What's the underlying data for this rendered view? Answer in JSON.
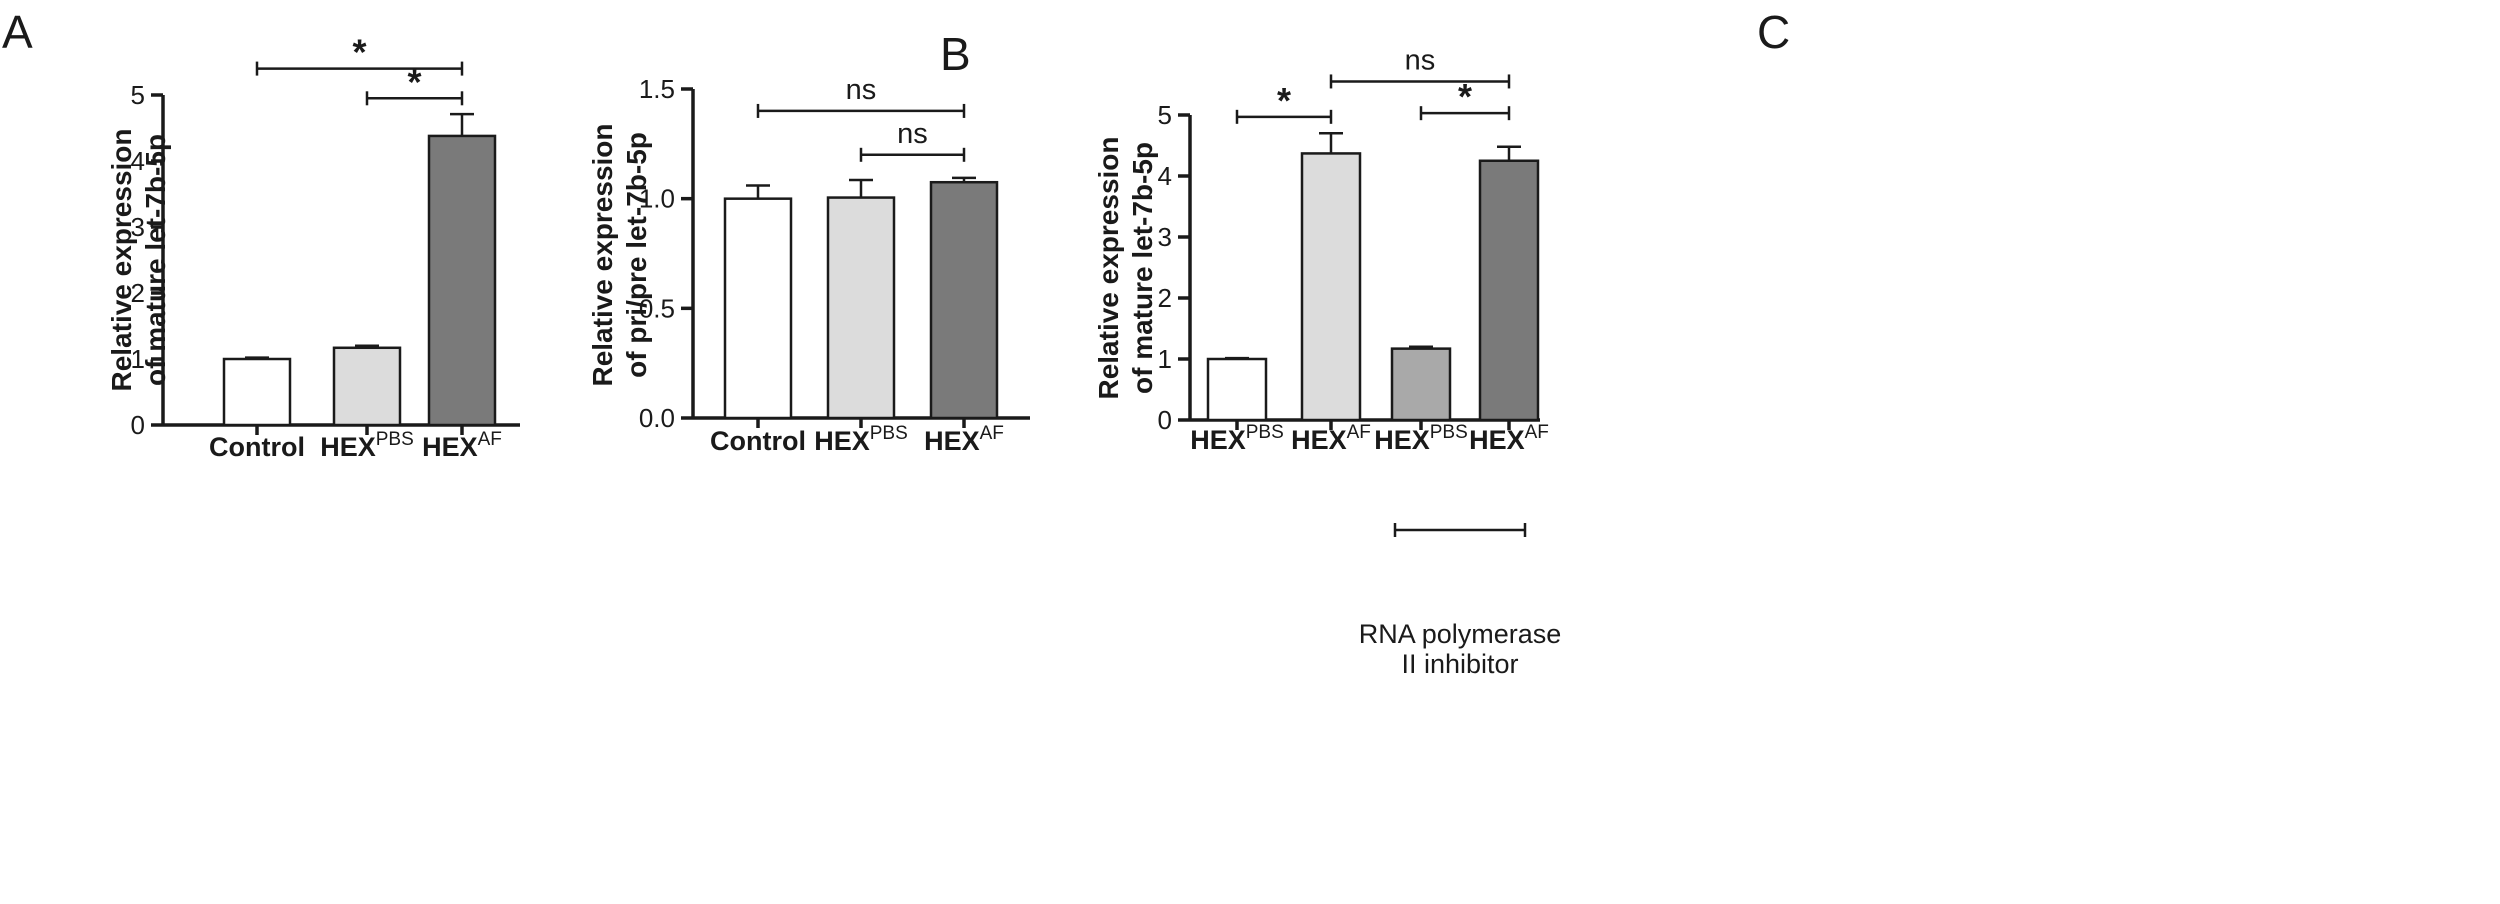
{
  "chart_data": [
    {
      "panel": "A",
      "type": "bar",
      "ylabel": [
        "Relative expression",
        "of mature let-7b-5p"
      ],
      "ylim": [
        0,
        5
      ],
      "yticks": [
        0,
        1,
        2,
        3,
        4,
        5
      ],
      "categories": [
        {
          "base": "Control",
          "sup": ""
        },
        {
          "base": "HEX",
          "sup": "PBS"
        },
        {
          "base": "HEX",
          "sup": "AF"
        }
      ],
      "values": [
        1.0,
        1.17,
        4.38
      ],
      "errors": [
        0.02,
        0.03,
        0.33
      ],
      "colors": [
        "#ffffff",
        "#dcdcdc",
        "#7a7a7a"
      ],
      "significance": [
        {
          "from": 0,
          "to": 2,
          "label": "*",
          "y": 5.4
        },
        {
          "from": 1,
          "to": 2,
          "label": "*",
          "y": 4.95
        }
      ]
    },
    {
      "panel": "B",
      "type": "bar",
      "ylabel": [
        "Relative expression",
        "of pri/pre let-7b-5p"
      ],
      "ylim": [
        0,
        1.5
      ],
      "yticks": [
        0.0,
        0.5,
        1.0,
        1.5
      ],
      "tick_decimals": 1,
      "categories": [
        {
          "base": "Control",
          "sup": ""
        },
        {
          "base": "HEX",
          "sup": "PBS"
        },
        {
          "base": "HEX",
          "sup": "AF"
        }
      ],
      "values": [
        1.0,
        1.005,
        1.075
      ],
      "errors": [
        0.06,
        0.08,
        0.02
      ],
      "colors": [
        "#ffffff",
        "#dcdcdc",
        "#7a7a7a"
      ],
      "significance": [
        {
          "from": 0,
          "to": 2,
          "label": "ns",
          "y": 1.4
        },
        {
          "from": 1,
          "to": 2,
          "label": "ns",
          "y": 1.2
        }
      ]
    },
    {
      "panel": "C",
      "type": "bar",
      "ylabel": [
        "Relative expression",
        "of mature let-7b-5p"
      ],
      "ylim": [
        0,
        5
      ],
      "yticks": [
        0,
        1,
        2,
        3,
        4,
        5
      ],
      "categories": [
        {
          "base": "HEX",
          "sup": "PBS"
        },
        {
          "base": "HEX",
          "sup": "AF"
        },
        {
          "base": "HEX",
          "sup": "PBS"
        },
        {
          "base": "HEX",
          "sup": "AF"
        }
      ],
      "values": [
        1.0,
        4.37,
        1.17,
        4.25
      ],
      "errors": [
        0.015,
        0.33,
        0.03,
        0.23
      ],
      "colors": [
        "#ffffff",
        "#dcdcdc",
        "#a9a9a9",
        "#7a7a7a"
      ],
      "significance": [
        {
          "from": 0,
          "to": 1,
          "label": "*",
          "y": 4.97
        },
        {
          "from": 1,
          "to": 3,
          "label": "ns",
          "y": 5.55
        },
        {
          "from": 2,
          "to": 3,
          "label": "*",
          "y": 5.03
        }
      ],
      "group_annotation": {
        "from": 2,
        "to": 3,
        "lines": [
          "RNA  polymerase",
          "II inhibitor"
        ]
      }
    }
  ]
}
